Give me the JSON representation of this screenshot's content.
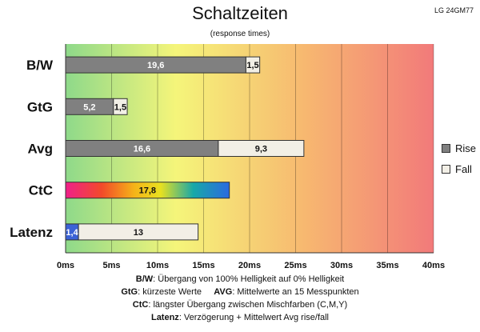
{
  "header": {
    "title": "Schaltzeiten",
    "subtitle": "(response times)",
    "model": "LG 24GM77"
  },
  "legend": {
    "items": [
      {
        "label": "Rise",
        "color": "#808080"
      },
      {
        "label": "Fall",
        "color": "#f2efe6"
      }
    ]
  },
  "chart_data": {
    "type": "bar",
    "orientation": "horizontal",
    "stacked": true,
    "title": "Schaltzeiten",
    "subtitle": "(response times)",
    "xlim": [
      0,
      40
    ],
    "x_ticks": [
      "0ms",
      "5ms",
      "10ms",
      "15ms",
      "20ms",
      "25ms",
      "30ms",
      "35ms",
      "40ms"
    ],
    "categories": [
      "B/W",
      "GtG",
      "Avg",
      "CtC",
      "Latenz"
    ],
    "series": [
      {
        "name": "Rise",
        "values": [
          19.6,
          5.2,
          16.6,
          null,
          null
        ],
        "labels": [
          "19,6",
          "5,2",
          "16,6",
          "",
          ""
        ]
      },
      {
        "name": "Fall",
        "values": [
          1.5,
          1.5,
          9.3,
          null,
          null
        ],
        "labels": [
          "1,5",
          "1,5",
          "9,3",
          "",
          ""
        ]
      }
    ],
    "special_bars": [
      {
        "category": "CtC",
        "value": 17.8,
        "label": "17,8",
        "style": "rainbow"
      },
      {
        "category": "Latenz",
        "segments": [
          {
            "value": 1.4,
            "label": "1,4",
            "color": "#3b62d6"
          },
          {
            "value": 13,
            "label": "13",
            "color": "#f2efe6"
          }
        ]
      }
    ],
    "background_gradient": [
      "#8ed98a",
      "#f5f57a",
      "#f7b870",
      "#f27a7a"
    ],
    "grid": true,
    "legend_position": "right"
  },
  "footnotes": [
    {
      "key": "B/W",
      "text": ":  Übergang von 100% Helligkeit auf 0% Helligkeit"
    },
    {
      "key": "GtG",
      "text": ": kürzeste  Werte",
      "key2": "AVG",
      "text2": ": Mittelwerte  an 15 Messpunkten"
    },
    {
      "key": "CtC",
      "text": ": längster Übergang  zwischen Mischfarben (C,M,Y)"
    },
    {
      "key": "Latenz",
      "text": ": Verzögerung  + Mittelwert Avg rise/fall"
    }
  ]
}
